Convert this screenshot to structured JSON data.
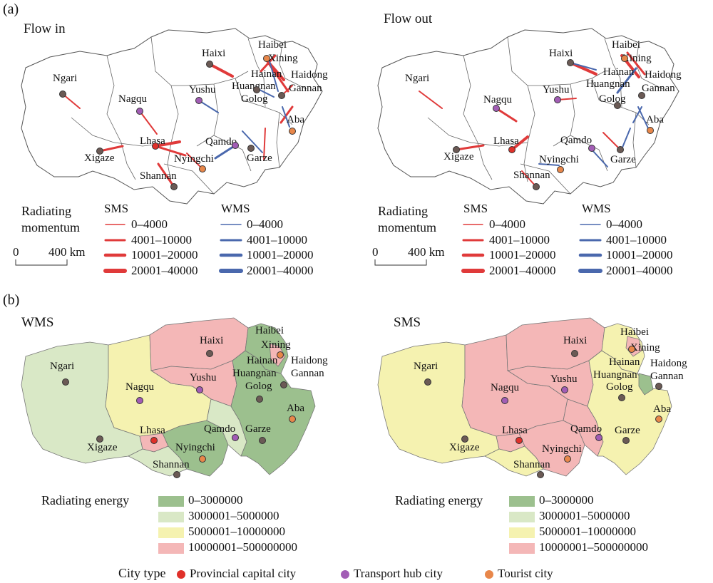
{
  "colors": {
    "sms": "#e03a3a",
    "wms": "#4a68ad",
    "energy": [
      "#9cc08e",
      "#d9e8c6",
      "#f5f2b0",
      "#f4b7b7"
    ],
    "city_dot_default": "#6b5a55",
    "provincial_capital": "#e0302a",
    "transport_hub": "#a25db5",
    "tourist": "#e8874a",
    "boundary": "#555555"
  },
  "panel_a": {
    "label": "(a)",
    "flow_in_title": "Flow in",
    "flow_out_title": "Flow out",
    "legend": {
      "title_line1": "Radiating",
      "title_line2": "momentum",
      "sms_head": "SMS",
      "wms_head": "WMS",
      "ranges": [
        "0–4000",
        "4001–10000",
        "10001–20000",
        "20001–40000"
      ],
      "scale_zero": "0",
      "scale_label": "400 km"
    }
  },
  "panel_b": {
    "label": "(b)",
    "wms_title": "WMS",
    "sms_title": "SMS",
    "legend": {
      "title": "Radiating energy",
      "ranges": [
        "0–3000000",
        "3000001–5000000",
        "5000001–10000000",
        "10000001–500000000"
      ]
    }
  },
  "city_type_legend": {
    "title": "City type",
    "items": [
      {
        "label": "Provincial capital city",
        "color": "#e0302a"
      },
      {
        "label": "Transport hub city",
        "color": "#a25db5"
      },
      {
        "label": "Tourist city",
        "color": "#e8874a"
      }
    ]
  },
  "cities": {
    "haibei": "Haibei",
    "xining": "Xining",
    "haixi": "Haixi",
    "hainan": "Hainan",
    "haidong": "Haidong",
    "huangnan": "Huangnan",
    "gannan": "Gannan",
    "ngari": "Ngari",
    "yushu": "Yushu",
    "golog": "Golog",
    "nagqu": "Nagqu",
    "aba": "Aba",
    "lhasa": "Lhasa",
    "qamdo": "Qamdo",
    "xigaze": "Xigaze",
    "nyingchi": "Nyingchi",
    "garze": "Garze",
    "shannan": "Shannan"
  }
}
